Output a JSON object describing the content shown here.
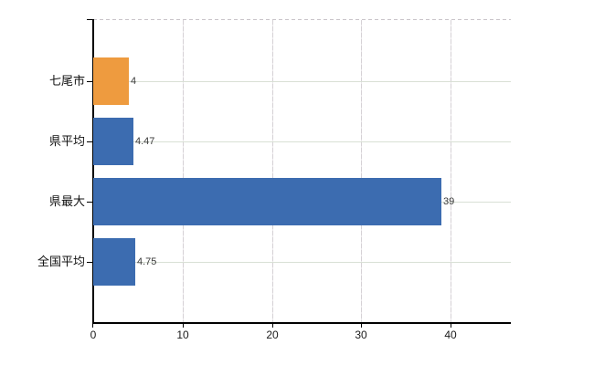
{
  "chart_data": {
    "type": "bar",
    "orientation": "horizontal",
    "title": "",
    "xlabel": "",
    "ylabel": "",
    "categories": [
      "七尾市",
      "県平均",
      "県最大",
      "全国平均"
    ],
    "values": [
      4,
      4.47,
      39,
      4.75
    ],
    "value_labels": [
      "4",
      "4.47",
      "39",
      "4.75"
    ],
    "bar_colors": [
      "#ee9b3f",
      "#3c6cb0",
      "#3c6cb0",
      "#3c6cb0"
    ],
    "x_ticks": [
      0,
      10,
      20,
      30,
      40
    ],
    "x_tick_labels": [
      "0",
      "10",
      "20",
      "30",
      "40"
    ],
    "xlim": [
      0,
      46.8
    ],
    "grid": true,
    "legend": false,
    "colors": {
      "highlight_bar": "#ee9b3f",
      "default_bar": "#3c6cb0",
      "axis": "#000000",
      "gridline_horizontal": "#d9e0d5",
      "gridline_vertical": "#d5d1d5",
      "top_border_dash": "#c9c4c9",
      "background": "#ffffff",
      "text": "#111111"
    }
  }
}
